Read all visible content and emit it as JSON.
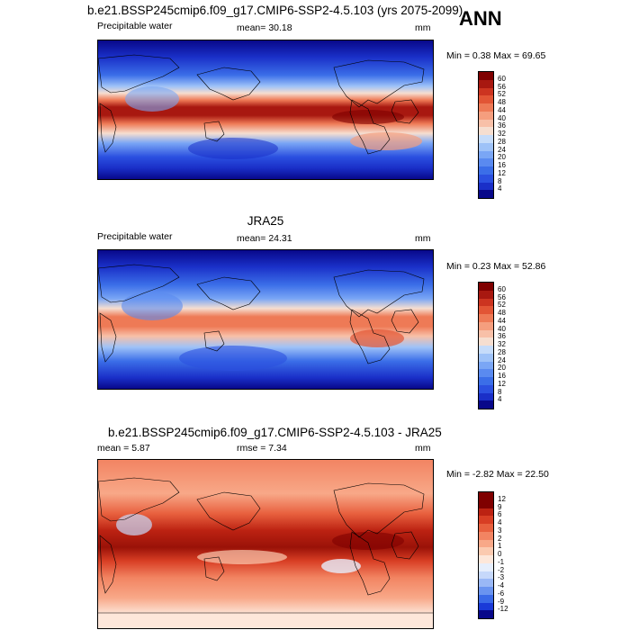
{
  "header": {
    "title": "b.e21.BSSP245cmip6.f09_g17.CMIP6-SSP2-4.5.103 (yrs 2075-2099)",
    "season": "ANN"
  },
  "panels": [
    {
      "id": "model",
      "variable": "Precipitable water",
      "mean_label": "mean=  30.18",
      "units": "mm",
      "minmax": "Min =   0.38 Max =  69.65",
      "colorbar_labels": [
        "60",
        "56",
        "52",
        "48",
        "44",
        "40",
        "36",
        "32",
        "28",
        "24",
        "20",
        "16",
        "12",
        "8",
        "4"
      ]
    },
    {
      "id": "obs",
      "title": "JRA25",
      "variable": "Precipitable water",
      "mean_label": "mean=  24.31",
      "units": "mm",
      "minmax": "Min =   0.23 Max =  52.86",
      "colorbar_labels": [
        "60",
        "56",
        "52",
        "48",
        "44",
        "40",
        "36",
        "32",
        "28",
        "24",
        "20",
        "16",
        "12",
        "8",
        "4"
      ]
    },
    {
      "id": "diff",
      "title": "b.e21.BSSP245cmip6.f09_g17.CMIP6-SSP2-4.5.103 - JRA25",
      "mean_label": "mean =   5.87",
      "rmse_label": "rmse =   7.34",
      "units": "mm",
      "minmax": "Min =  -2.82 Max =  22.50",
      "colorbar_labels": [
        "12",
        "9",
        "6",
        "4",
        "3",
        "2",
        "1",
        "0",
        "-1",
        "-2",
        "-3",
        "-4",
        "-6",
        "-9",
        "-12"
      ]
    }
  ],
  "colors": {
    "abs_scale": [
      "#08088a",
      "#1a2fc8",
      "#2b50e0",
      "#3b6ee8",
      "#5a8af0",
      "#7aa6f5",
      "#9ec2f8",
      "#c6dcfa",
      "#f6ded0",
      "#f8c0a8",
      "#f59e7e",
      "#ee7a56",
      "#e25535",
      "#cc3420",
      "#a81810",
      "#7f0000"
    ],
    "diff_scale": [
      "#08088a",
      "#1a3ad8",
      "#3a6ae8",
      "#6a94f0",
      "#9ab8f6",
      "#c6d8fa",
      "#e6eefc",
      "#fde7da",
      "#fbcab0",
      "#f8a888",
      "#f28462",
      "#e8603e",
      "#d83e24",
      "#bc2212",
      "#7f0000"
    ]
  }
}
